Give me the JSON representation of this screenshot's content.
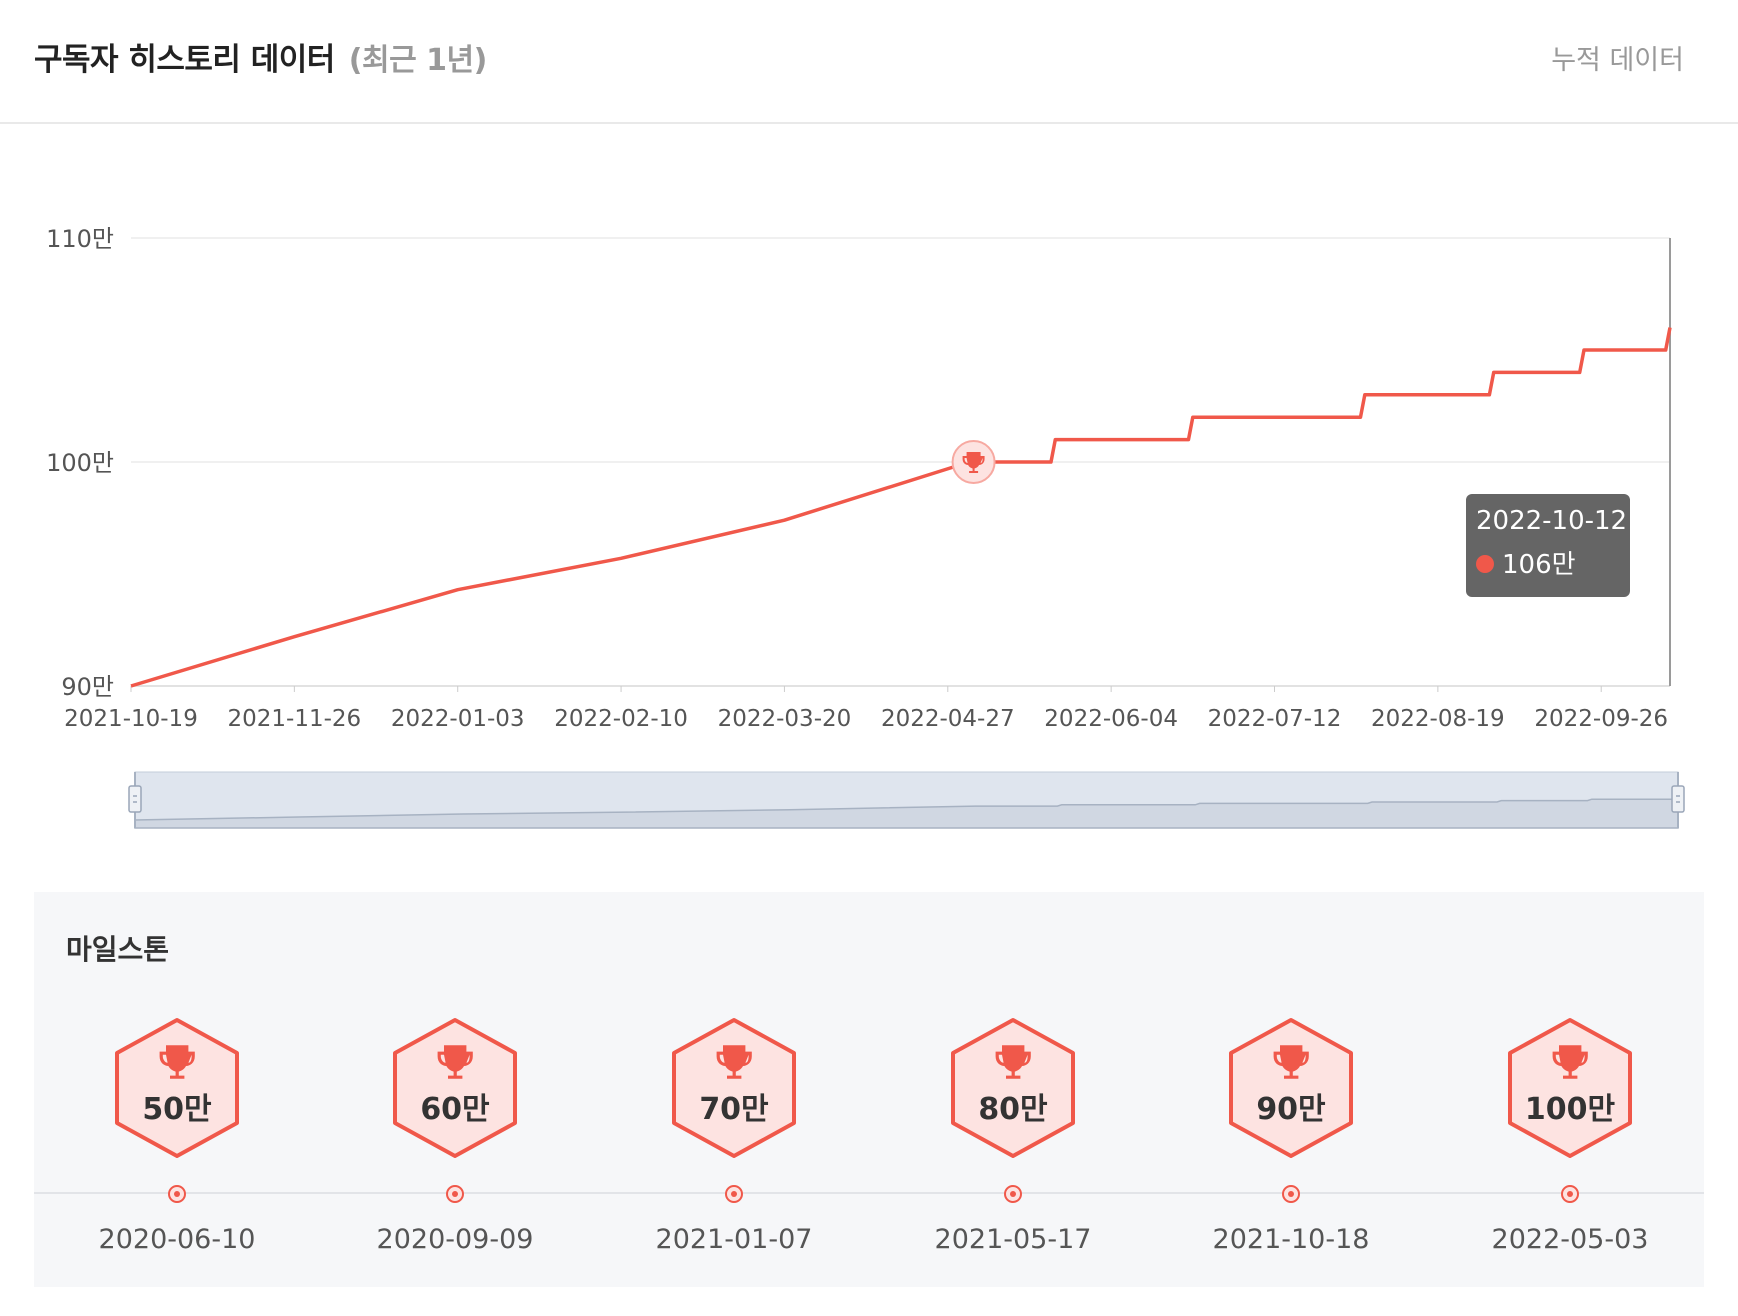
{
  "header": {
    "title": "구독자 히스토리 데이터",
    "subtitle": "(최근 1년)",
    "cumulative_label": "누적 데이터"
  },
  "colors": {
    "line": "#f0584a",
    "milestone_fill": "#fde3e1",
    "navigator_fill": "#d5dce7"
  },
  "chart_data": {
    "type": "line",
    "title": "",
    "xlabel": "",
    "ylabel": "",
    "ylim": [
      900000,
      1100000
    ],
    "yticks": [
      900000,
      1000000,
      1100000
    ],
    "ytick_labels": [
      "90만",
      "100만",
      "110만"
    ],
    "xlim": [
      "2021-10-19",
      "2022-10-12"
    ],
    "xticks": [
      "2021-10-19",
      "2021-11-26",
      "2022-01-03",
      "2022-02-10",
      "2022-03-20",
      "2022-04-27",
      "2022-06-04",
      "2022-07-12",
      "2022-08-19",
      "2022-09-26"
    ],
    "grid": true,
    "legend": "none",
    "series": [
      {
        "color": "#f0584a",
        "x": [
          "2021-10-19",
          "2021-11-26",
          "2022-01-03",
          "2022-02-10",
          "2022-03-20",
          "2022-05-02",
          "2022-05-21",
          "2022-05-22",
          "2022-06-22",
          "2022-06-23",
          "2022-08-01",
          "2022-08-02",
          "2022-08-31",
          "2022-09-01",
          "2022-09-21",
          "2022-09-22",
          "2022-10-11",
          "2022-10-12"
        ],
        "y": [
          900000,
          922000,
          943000,
          957000,
          974000,
          1000000,
          1000000,
          1010000,
          1010000,
          1020000,
          1020000,
          1030000,
          1030000,
          1040000,
          1040000,
          1050000,
          1050000,
          1060000
        ]
      }
    ],
    "milestone_marker": {
      "date": "2022-05-03",
      "value": 1000000,
      "icon": "trophy-icon"
    },
    "tooltip": {
      "date": "2022-10-12",
      "value_label": "106만"
    }
  },
  "milestones": {
    "title": "마일스톤",
    "items": [
      {
        "label": "50만",
        "date": "2020-06-10",
        "icon": "trophy-icon"
      },
      {
        "label": "60만",
        "date": "2020-09-09",
        "icon": "trophy-icon"
      },
      {
        "label": "70만",
        "date": "2021-01-07",
        "icon": "trophy-icon"
      },
      {
        "label": "80만",
        "date": "2021-05-17",
        "icon": "trophy-icon"
      },
      {
        "label": "90만",
        "date": "2021-10-18",
        "icon": "trophy-icon"
      },
      {
        "label": "100만",
        "date": "2022-05-03",
        "icon": "trophy-icon"
      }
    ]
  }
}
